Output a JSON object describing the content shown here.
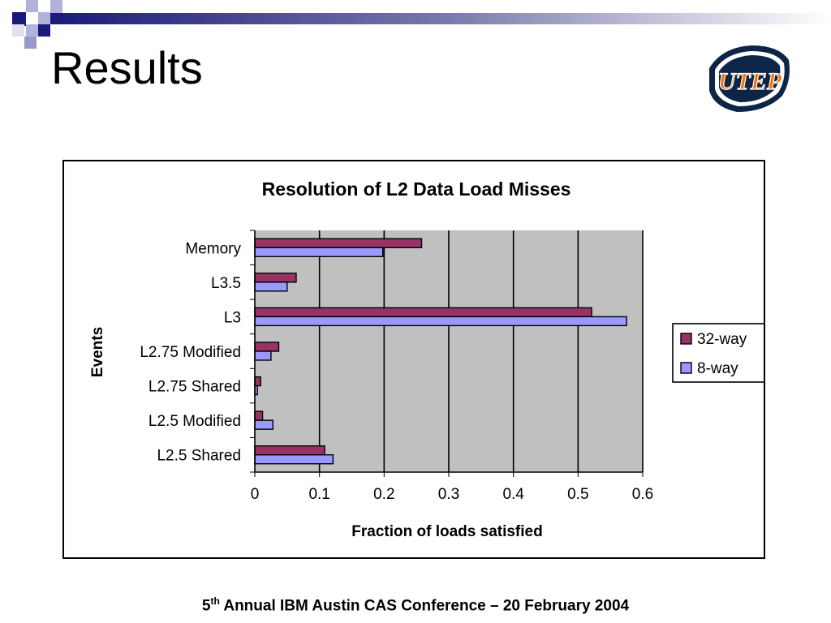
{
  "slide": {
    "title": "Results",
    "footer_num": "5",
    "footer_sup": "th",
    "footer_rest": " Annual IBM Austin CAS Conference – 20 February 2004",
    "logo_text": "UTEP",
    "colors": {
      "decoration_dark": "#1a1a7a",
      "decoration_light": "#9999cc"
    }
  },
  "chart_data": {
    "type": "bar",
    "orientation": "horizontal",
    "title": "Resolution of L2 Data Load Misses",
    "xlabel": "Fraction of loads satisfied",
    "ylabel": "Events",
    "categories": [
      "L2.5 Shared",
      "L2.5 Modified",
      "L2.75 Shared",
      "L2.75 Modified",
      "L3",
      "L3.5",
      "Memory"
    ],
    "series": [
      {
        "name": "32-way",
        "color": "#993366",
        "values": [
          0.108,
          0.012,
          0.009,
          0.037,
          0.521,
          0.064,
          0.258
        ]
      },
      {
        "name": "8-way",
        "color": "#9999ff",
        "values": [
          0.121,
          0.028,
          0.004,
          0.025,
          0.575,
          0.05,
          0.198
        ]
      }
    ],
    "xlim": [
      0,
      0.6
    ],
    "xticks": [
      "0",
      "0.1",
      "0.2",
      "0.3",
      "0.4",
      "0.5",
      "0.6"
    ],
    "grid": true,
    "plot_background": "#c0c0c0",
    "legend": "right"
  }
}
